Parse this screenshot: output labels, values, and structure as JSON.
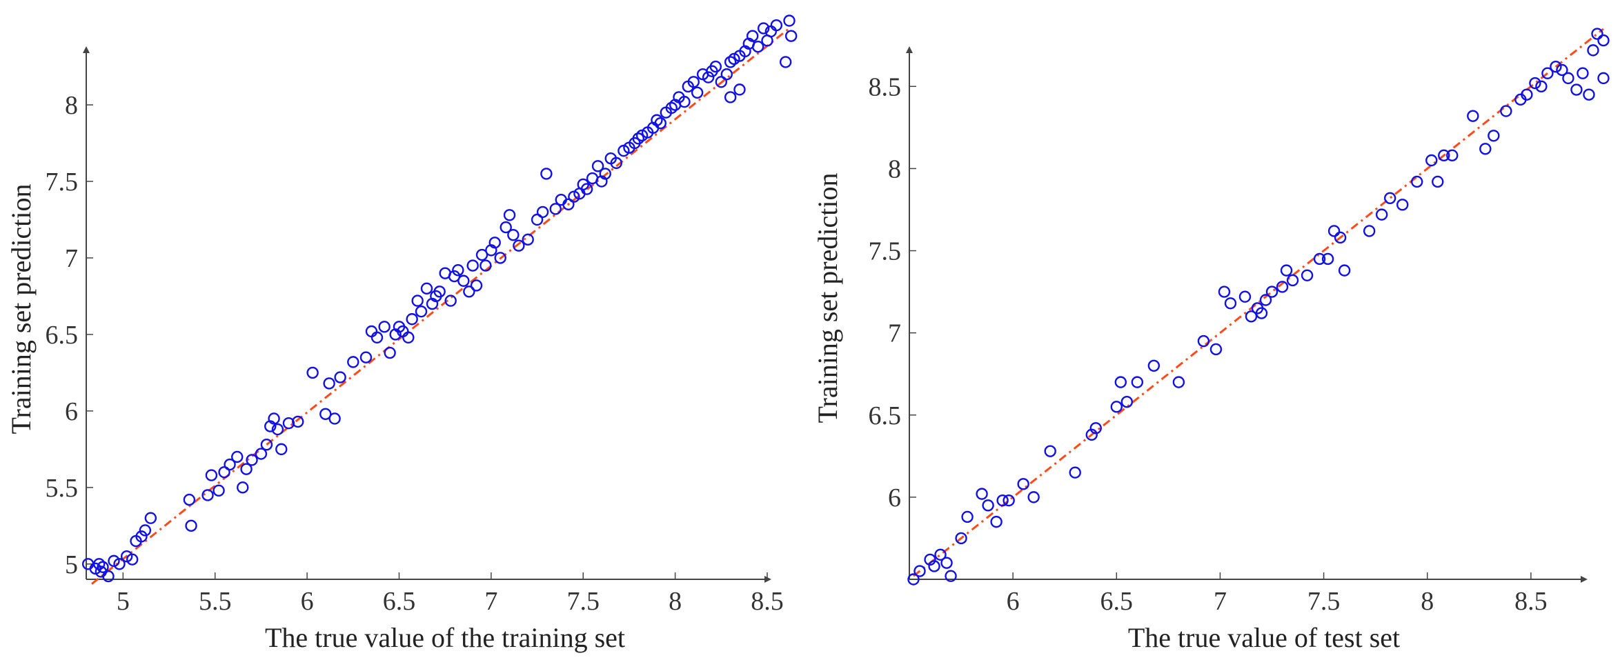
{
  "chart_data": [
    {
      "type": "scatter",
      "xlabel": "The true value of the training set",
      "ylabel": "Training set prediction",
      "xlim": [
        4.8,
        8.65
      ],
      "ylim": [
        4.9,
        8.55
      ],
      "xticks": [
        5,
        5.5,
        6,
        6.5,
        7,
        7.5,
        8,
        8.5
      ],
      "xtick_labels": [
        "5",
        "5.5",
        "6",
        "6.5",
        "7",
        "7.5",
        "8",
        "8.5"
      ],
      "yticks": [
        5,
        5.5,
        6,
        6.5,
        7,
        7.5,
        8
      ],
      "ytick_labels": [
        "5",
        "5.5",
        "6",
        "6.5",
        "7",
        "7.5",
        "8"
      ],
      "fit_line": {
        "x": [
          4.83,
          8.62
        ],
        "y": [
          4.87,
          8.5
        ]
      },
      "points": {
        "x": [
          4.81,
          4.85,
          4.87,
          4.88,
          4.89,
          4.92,
          4.95,
          4.98,
          5.02,
          5.05,
          5.07,
          5.1,
          5.12,
          5.15,
          5.36,
          5.37,
          5.46,
          5.48,
          5.52,
          5.55,
          5.58,
          5.62,
          5.65,
          5.67,
          5.7,
          5.75,
          5.78,
          5.8,
          5.82,
          5.84,
          5.86,
          5.9,
          5.95,
          6.03,
          6.1,
          6.12,
          6.15,
          6.18,
          6.25,
          6.32,
          6.35,
          6.38,
          6.42,
          6.45,
          6.48,
          6.5,
          6.52,
          6.55,
          6.57,
          6.6,
          6.62,
          6.65,
          6.68,
          6.7,
          6.72,
          6.75,
          6.78,
          6.8,
          6.82,
          6.85,
          6.88,
          6.9,
          6.92,
          6.95,
          6.97,
          7.0,
          7.02,
          7.05,
          7.08,
          7.1,
          7.12,
          7.15,
          7.2,
          7.25,
          7.28,
          7.3,
          7.35,
          7.38,
          7.42,
          7.45,
          7.48,
          7.5,
          7.52,
          7.55,
          7.58,
          7.6,
          7.62,
          7.65,
          7.68,
          7.72,
          7.75,
          7.78,
          7.8,
          7.82,
          7.85,
          7.88,
          7.9,
          7.92,
          7.95,
          7.98,
          8.0,
          8.02,
          8.05,
          8.07,
          8.1,
          8.12,
          8.15,
          8.18,
          8.2,
          8.22,
          8.25,
          8.28,
          8.3,
          8.32,
          8.35,
          8.38,
          8.4,
          8.42,
          8.45,
          8.48,
          8.5,
          8.52,
          8.55,
          8.6,
          8.62,
          8.63,
          8.35,
          8.3
        ],
        "y": [
          5.0,
          4.97,
          5.0,
          4.95,
          4.98,
          4.92,
          5.02,
          5.0,
          5.05,
          5.03,
          5.15,
          5.18,
          5.22,
          5.3,
          5.42,
          5.25,
          5.45,
          5.58,
          5.48,
          5.6,
          5.65,
          5.7,
          5.5,
          5.62,
          5.68,
          5.72,
          5.78,
          5.9,
          5.95,
          5.88,
          5.75,
          5.92,
          5.93,
          6.25,
          5.98,
          6.18,
          5.95,
          6.22,
          6.32,
          6.35,
          6.52,
          6.48,
          6.55,
          6.38,
          6.5,
          6.55,
          6.52,
          6.48,
          6.6,
          6.72,
          6.65,
          6.8,
          6.7,
          6.75,
          6.78,
          6.9,
          6.72,
          6.88,
          6.92,
          6.85,
          6.78,
          6.95,
          6.82,
          7.02,
          6.95,
          7.05,
          7.1,
          7.0,
          7.2,
          7.28,
          7.15,
          7.08,
          7.12,
          7.25,
          7.3,
          7.55,
          7.32,
          7.38,
          7.35,
          7.4,
          7.42,
          7.48,
          7.45,
          7.52,
          7.6,
          7.5,
          7.55,
          7.65,
          7.62,
          7.7,
          7.72,
          7.75,
          7.78,
          7.8,
          7.82,
          7.85,
          7.9,
          7.88,
          7.95,
          7.98,
          8.0,
          8.05,
          8.02,
          8.12,
          8.15,
          8.08,
          8.2,
          8.18,
          8.22,
          8.25,
          8.15,
          8.2,
          8.28,
          8.3,
          8.32,
          8.35,
          8.4,
          8.45,
          8.38,
          8.5,
          8.42,
          8.48,
          8.52,
          8.28,
          8.55,
          8.45,
          8.1,
          8.05
        ]
      }
    },
    {
      "type": "scatter",
      "xlabel": "The true value of test set",
      "ylabel": "Training set prediction",
      "xlim": [
        5.5,
        8.88
      ],
      "ylim": [
        5.5,
        8.9
      ],
      "xticks": [
        6,
        6.5,
        7,
        7.5,
        8,
        8.5
      ],
      "xtick_labels": [
        "6",
        "6.5",
        "7",
        "7.5",
        "8",
        "8.5"
      ],
      "yticks": [
        6,
        6.5,
        7,
        7.5,
        8,
        8.5
      ],
      "ytick_labels": [
        "6",
        "6.5",
        "7",
        "7.5",
        "8",
        "8.5"
      ],
      "fit_line": {
        "x": [
          5.52,
          8.85
        ],
        "y": [
          5.52,
          8.85
        ]
      },
      "points": {
        "x": [
          5.52,
          5.55,
          5.6,
          5.62,
          5.65,
          5.68,
          5.7,
          5.75,
          5.78,
          5.85,
          5.88,
          5.92,
          5.95,
          5.98,
          6.05,
          6.1,
          6.18,
          6.3,
          6.38,
          6.4,
          6.5,
          6.52,
          6.55,
          6.6,
          6.68,
          6.8,
          6.92,
          6.98,
          7.02,
          7.05,
          7.12,
          7.15,
          7.18,
          7.2,
          7.22,
          7.25,
          7.3,
          7.32,
          7.35,
          7.42,
          7.48,
          7.52,
          7.55,
          7.58,
          7.6,
          7.72,
          7.78,
          7.82,
          7.88,
          7.95,
          8.02,
          8.05,
          8.08,
          8.12,
          8.22,
          8.28,
          8.32,
          8.38,
          8.45,
          8.48,
          8.52,
          8.55,
          8.58,
          8.62,
          8.65,
          8.68,
          8.72,
          8.75,
          8.8,
          8.82,
          8.85,
          8.85,
          8.78
        ],
        "y": [
          5.5,
          5.55,
          5.62,
          5.58,
          5.65,
          5.6,
          5.52,
          5.75,
          5.88,
          6.02,
          5.95,
          5.85,
          5.98,
          5.98,
          6.08,
          6.0,
          6.28,
          6.15,
          6.38,
          6.42,
          6.55,
          6.7,
          6.58,
          6.7,
          6.8,
          6.7,
          6.95,
          6.9,
          7.25,
          7.18,
          7.22,
          7.1,
          7.15,
          7.12,
          7.2,
          7.25,
          7.28,
          7.38,
          7.32,
          7.35,
          7.45,
          7.45,
          7.62,
          7.58,
          7.38,
          7.62,
          7.72,
          7.82,
          7.78,
          7.92,
          8.05,
          7.92,
          8.08,
          8.08,
          8.32,
          8.12,
          8.2,
          8.35,
          8.42,
          8.45,
          8.52,
          8.5,
          8.58,
          8.62,
          8.6,
          8.55,
          8.48,
          8.58,
          8.72,
          8.82,
          8.78,
          8.55,
          8.45
        ]
      }
    }
  ]
}
